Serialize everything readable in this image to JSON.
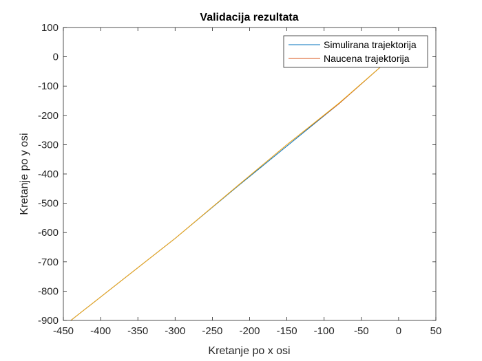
{
  "chart_data": {
    "type": "line",
    "title": "Validacija rezultata",
    "xlabel": "Kretanje po x osi",
    "ylabel": "Kretanje po y osi",
    "xlim": [
      -450,
      50
    ],
    "ylim": [
      -900,
      100
    ],
    "xticks": [
      -450,
      -400,
      -350,
      -300,
      -250,
      -200,
      -150,
      -100,
      -50,
      0,
      50
    ],
    "yticks": [
      -900,
      -800,
      -700,
      -600,
      -500,
      -400,
      -300,
      -200,
      -100,
      0,
      100
    ],
    "grid": false,
    "legend_position": "top-right",
    "series": [
      {
        "name": "Simulirana trajektorija",
        "color": "#0072BD",
        "x": [
          -20,
          -80,
          -150,
          -215,
          -300,
          -440
        ],
        "y": [
          -25,
          -160,
          -305,
          -440,
          -620,
          -900
        ]
      },
      {
        "name": "Naucena trajektorija",
        "color": "#D95319",
        "x": [
          -20,
          -80,
          -150,
          -215,
          -300,
          -440
        ],
        "y": [
          -25,
          -160,
          -300,
          -438,
          -620,
          -900
        ]
      },
      {
        "name": "",
        "color": "#EDB120",
        "x": [
          -20,
          -80,
          -150,
          -215,
          -300,
          -440
        ],
        "y": [
          -25,
          -158,
          -300,
          -438,
          -620,
          -900
        ]
      }
    ]
  }
}
